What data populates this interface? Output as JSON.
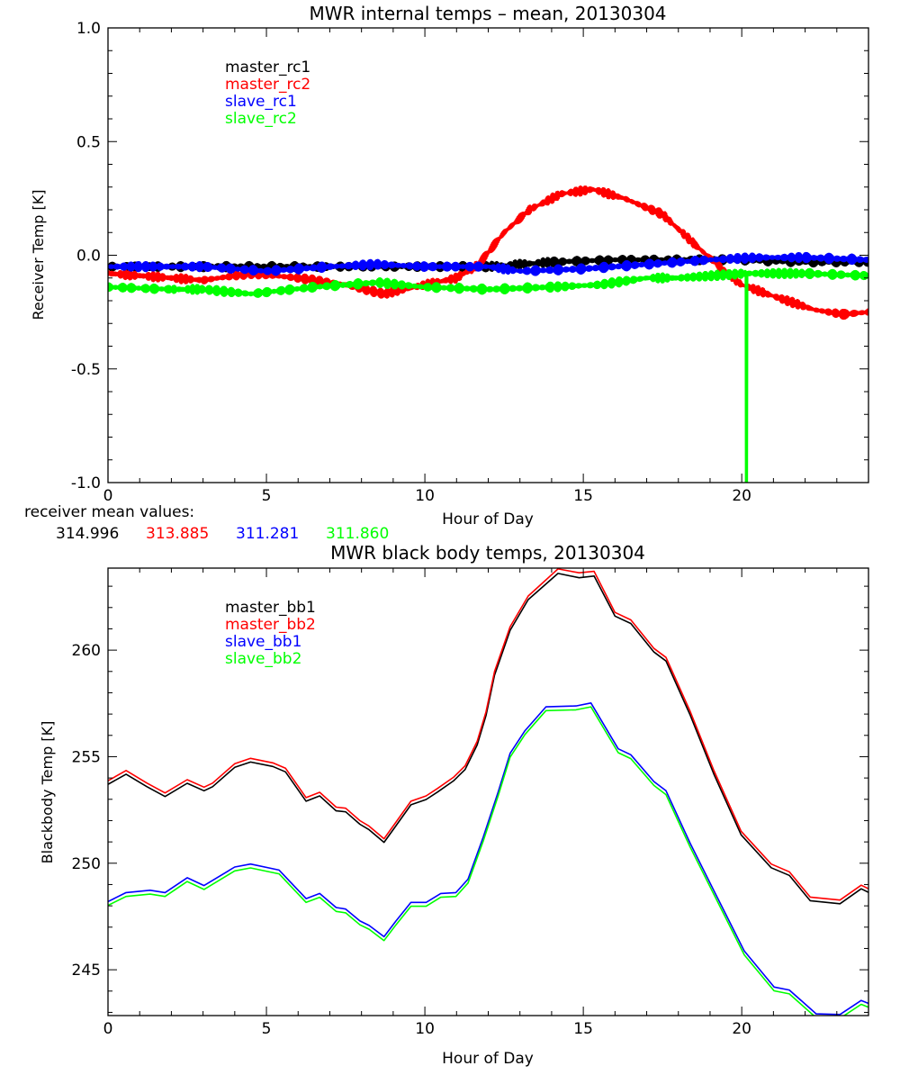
{
  "chart_data": [
    {
      "type": "line",
      "title": "MWR internal temps – mean, 20130304",
      "xlabel": "Hour of Day",
      "ylabel": "Receiver Temp [K]",
      "xlim": [
        0,
        24
      ],
      "ylim": [
        -1.0,
        1.0
      ],
      "xticks": [
        0,
        5,
        10,
        15,
        20
      ],
      "xtick_labels": [
        "0",
        "5",
        "10",
        "15",
        "20"
      ],
      "yticks": [
        -1.0,
        -0.5,
        0.0,
        0.5,
        1.0
      ],
      "ytick_labels": [
        "-1.0",
        "-0.5",
        "0.0",
        "0.5",
        "1.0"
      ],
      "grid": false,
      "legend_placement": "top-left",
      "series": [
        {
          "name": "master_rc1",
          "color": "#000000",
          "points": [
            [
              0,
              -0.05
            ],
            [
              2,
              -0.05
            ],
            [
              4,
              -0.05
            ],
            [
              6,
              -0.05
            ],
            [
              8,
              -0.05
            ],
            [
              10,
              -0.05
            ],
            [
              12,
              -0.05
            ],
            [
              13,
              -0.04
            ],
            [
              14,
              -0.03
            ],
            [
              16,
              -0.02
            ],
            [
              18,
              -0.02
            ],
            [
              20,
              -0.02
            ],
            [
              22,
              -0.03
            ],
            [
              24,
              -0.03
            ]
          ]
        },
        {
          "name": "master_rc2",
          "color": "#ff0000",
          "points": [
            [
              0,
              -0.08
            ],
            [
              1,
              -0.09
            ],
            [
              2,
              -0.1
            ],
            [
              3,
              -0.11
            ],
            [
              4.5,
              -0.08
            ],
            [
              6,
              -0.1
            ],
            [
              7.5,
              -0.13
            ],
            [
              8.7,
              -0.17
            ],
            [
              10,
              -0.13
            ],
            [
              11,
              -0.1
            ],
            [
              11.7,
              -0.04
            ],
            [
              12.5,
              0.1
            ],
            [
              13.3,
              0.2
            ],
            [
              14.3,
              0.27
            ],
            [
              15.3,
              0.29
            ],
            [
              16.3,
              0.25
            ],
            [
              17.5,
              0.18
            ],
            [
              18.5,
              0.05
            ],
            [
              19.3,
              -0.05
            ],
            [
              20,
              -0.13
            ],
            [
              21,
              -0.18
            ],
            [
              22.3,
              -0.24
            ],
            [
              23.2,
              -0.26
            ],
            [
              24,
              -0.25
            ]
          ]
        },
        {
          "name": "slave_rc1",
          "color": "#0000ff",
          "points": [
            [
              0,
              -0.05
            ],
            [
              3,
              -0.05
            ],
            [
              5,
              -0.07
            ],
            [
              7,
              -0.05
            ],
            [
              8.5,
              -0.04
            ],
            [
              10,
              -0.05
            ],
            [
              12,
              -0.05
            ],
            [
              13,
              -0.07
            ],
            [
              15,
              -0.06
            ],
            [
              17,
              -0.04
            ],
            [
              19,
              -0.02
            ],
            [
              20.5,
              -0.01
            ],
            [
              22,
              -0.01
            ],
            [
              24,
              -0.02
            ]
          ]
        },
        {
          "name": "slave_rc2",
          "color": "#00ff00",
          "points": [
            [
              0,
              -0.14
            ],
            [
              2,
              -0.15
            ],
            [
              3,
              -0.15
            ],
            [
              4.5,
              -0.17
            ],
            [
              6.5,
              -0.14
            ],
            [
              8.5,
              -0.12
            ],
            [
              10,
              -0.14
            ],
            [
              12,
              -0.15
            ],
            [
              14,
              -0.14
            ],
            [
              15.5,
              -0.13
            ],
            [
              17,
              -0.1
            ],
            [
              18,
              -0.1
            ],
            [
              20.14,
              -0.08
            ],
            [
              20.15,
              -1.0
            ],
            [
              20.16,
              -0.08
            ],
            [
              22,
              -0.08
            ],
            [
              24,
              -0.09
            ]
          ]
        }
      ],
      "annotation_label": "receiver mean values:",
      "mean_values": [
        {
          "value": "314.996",
          "color": "#000000"
        },
        {
          "value": "313.885",
          "color": "#ff0000"
        },
        {
          "value": "311.281",
          "color": "#0000ff"
        },
        {
          "value": "311.860",
          "color": "#00ff00"
        }
      ]
    },
    {
      "type": "line",
      "title": "MWR black body temps, 20130304",
      "xlabel": "Hour of Day",
      "ylabel": "Blackbody Temp [K]",
      "xlim": [
        0,
        24
      ],
      "ylim": [
        242.85,
        263.85
      ],
      "xticks": [
        0,
        5,
        10,
        15,
        20
      ],
      "xtick_labels": [
        "0",
        "5",
        "10",
        "15",
        "20"
      ],
      "yticks": [
        245,
        250,
        255,
        260
      ],
      "ytick_labels": [
        "245",
        "250",
        "255",
        "260"
      ],
      "grid": false,
      "legend_placement": "top-left",
      "series": [
        {
          "name": "master_bb1",
          "color": "#000000",
          "points": [
            [
              0,
              253.7
            ],
            [
              0.57,
              254.18
            ],
            [
              1.23,
              253.59
            ],
            [
              1.8,
              253.13
            ],
            [
              2.5,
              253.75
            ],
            [
              3.03,
              253.4
            ],
            [
              3.3,
              253.59
            ],
            [
              4.0,
              254.5
            ],
            [
              4.5,
              254.75
            ],
            [
              5.2,
              254.54
            ],
            [
              5.6,
              254.29
            ],
            [
              6.25,
              252.91
            ],
            [
              6.68,
              253.16
            ],
            [
              7.2,
              252.46
            ],
            [
              7.5,
              252.41
            ],
            [
              7.95,
              251.83
            ],
            [
              8.24,
              251.57
            ],
            [
              8.71,
              250.98
            ],
            [
              9.09,
              251.76
            ],
            [
              9.56,
              252.74
            ],
            [
              10.04,
              252.99
            ],
            [
              10.4,
              253.34
            ],
            [
              10.9,
              253.86
            ],
            [
              11.27,
              254.4
            ],
            [
              11.65,
              255.55
            ],
            [
              11.93,
              256.93
            ],
            [
              12.2,
              258.83
            ],
            [
              12.69,
              260.93
            ],
            [
              13.26,
              262.37
            ],
            [
              14.2,
              263.6
            ],
            [
              14.87,
              263.4
            ],
            [
              15.34,
              263.48
            ],
            [
              16.0,
              261.6
            ],
            [
              16.5,
              261.25
            ],
            [
              17.23,
              259.91
            ],
            [
              17.61,
              259.49
            ],
            [
              18.37,
              256.96
            ],
            [
              19.13,
              254.15
            ],
            [
              19.98,
              251.33
            ],
            [
              20.93,
              249.79
            ],
            [
              21.5,
              249.43
            ],
            [
              22.16,
              248.24
            ],
            [
              23.1,
              248.1
            ],
            [
              23.77,
              248.8
            ],
            [
              24,
              248.63
            ]
          ]
        },
        {
          "name": "master_bb2",
          "color": "#ff0000",
          "points": [
            [
              0,
              253.87
            ],
            [
              0.57,
              254.35
            ],
            [
              1.23,
              253.76
            ],
            [
              1.8,
              253.3
            ],
            [
              2.5,
              253.92
            ],
            [
              3.03,
              253.57
            ],
            [
              3.3,
              253.76
            ],
            [
              4.0,
              254.67
            ],
            [
              4.5,
              254.92
            ],
            [
              5.2,
              254.71
            ],
            [
              5.6,
              254.46
            ],
            [
              6.25,
              253.08
            ],
            [
              6.68,
              253.33
            ],
            [
              7.2,
              252.63
            ],
            [
              7.5,
              252.58
            ],
            [
              7.95,
              252.0
            ],
            [
              8.24,
              251.74
            ],
            [
              8.71,
              251.15
            ],
            [
              9.09,
              251.93
            ],
            [
              9.56,
              252.91
            ],
            [
              10.04,
              253.16
            ],
            [
              10.4,
              253.51
            ],
            [
              10.9,
              254.03
            ],
            [
              11.27,
              254.57
            ],
            [
              11.65,
              255.72
            ],
            [
              11.93,
              257.1
            ],
            [
              12.2,
              259.0
            ],
            [
              12.69,
              261.1
            ],
            [
              13.26,
              262.54
            ],
            [
              14.2,
              263.81
            ],
            [
              14.87,
              263.63
            ],
            [
              15.34,
              263.7
            ],
            [
              16.0,
              261.77
            ],
            [
              16.5,
              261.42
            ],
            [
              17.23,
              260.08
            ],
            [
              17.61,
              259.66
            ],
            [
              18.37,
              257.13
            ],
            [
              19.13,
              254.32
            ],
            [
              19.98,
              251.5
            ],
            [
              20.93,
              249.96
            ],
            [
              21.5,
              249.6
            ],
            [
              22.16,
              248.41
            ],
            [
              23.1,
              248.27
            ],
            [
              23.77,
              248.97
            ],
            [
              24,
              248.8
            ]
          ]
        },
        {
          "name": "slave_bb1",
          "color": "#0000ff",
          "points": [
            [
              0,
              248.2
            ],
            [
              0.57,
              248.62
            ],
            [
              1.33,
              248.73
            ],
            [
              1.8,
              248.62
            ],
            [
              2.5,
              249.32
            ],
            [
              3.03,
              248.95
            ],
            [
              4.0,
              249.82
            ],
            [
              4.5,
              249.96
            ],
            [
              5.4,
              249.68
            ],
            [
              6.25,
              248.34
            ],
            [
              6.68,
              248.58
            ],
            [
              7.2,
              247.92
            ],
            [
              7.5,
              247.85
            ],
            [
              7.95,
              247.29
            ],
            [
              8.24,
              247.08
            ],
            [
              8.71,
              246.55
            ],
            [
              9.09,
              247.29
            ],
            [
              9.56,
              248.16
            ],
            [
              10.04,
              248.16
            ],
            [
              10.5,
              248.58
            ],
            [
              10.98,
              248.62
            ],
            [
              11.36,
              249.25
            ],
            [
              11.84,
              251.22
            ],
            [
              12.31,
              253.33
            ],
            [
              12.69,
              255.16
            ],
            [
              13.16,
              256.22
            ],
            [
              13.82,
              257.34
            ],
            [
              14.77,
              257.38
            ],
            [
              15.24,
              257.52
            ],
            [
              16.1,
              255.37
            ],
            [
              16.5,
              255.09
            ],
            [
              17.23,
              253.83
            ],
            [
              17.61,
              253.4
            ],
            [
              18.37,
              250.94
            ],
            [
              19.13,
              248.69
            ],
            [
              20.08,
              245.88
            ],
            [
              21.02,
              244.19
            ],
            [
              21.5,
              244.05
            ],
            [
              22.35,
              242.93
            ],
            [
              23.1,
              242.9
            ],
            [
              23.77,
              243.56
            ],
            [
              24,
              243.42
            ]
          ]
        },
        {
          "name": "slave_bb2",
          "color": "#00ff00",
          "points": [
            [
              0,
              248.02
            ],
            [
              0.57,
              248.44
            ],
            [
              1.33,
              248.55
            ],
            [
              1.8,
              248.44
            ],
            [
              2.5,
              249.14
            ],
            [
              3.03,
              248.77
            ],
            [
              4.0,
              249.64
            ],
            [
              4.5,
              249.78
            ],
            [
              5.4,
              249.5
            ],
            [
              6.25,
              248.16
            ],
            [
              6.68,
              248.4
            ],
            [
              7.2,
              247.74
            ],
            [
              7.5,
              247.67
            ],
            [
              7.95,
              247.11
            ],
            [
              8.24,
              246.9
            ],
            [
              8.71,
              246.37
            ],
            [
              9.09,
              247.11
            ],
            [
              9.56,
              247.98
            ],
            [
              10.04,
              247.98
            ],
            [
              10.5,
              248.4
            ],
            [
              10.98,
              248.44
            ],
            [
              11.36,
              249.07
            ],
            [
              11.84,
              251.04
            ],
            [
              12.31,
              253.15
            ],
            [
              12.69,
              254.98
            ],
            [
              13.16,
              256.04
            ],
            [
              13.82,
              257.16
            ],
            [
              14.77,
              257.2
            ],
            [
              15.24,
              257.34
            ],
            [
              16.1,
              255.19
            ],
            [
              16.5,
              254.91
            ],
            [
              17.23,
              253.65
            ],
            [
              17.61,
              253.22
            ],
            [
              18.37,
              250.76
            ],
            [
              19.13,
              248.51
            ],
            [
              20.08,
              245.7
            ],
            [
              21.02,
              244.01
            ],
            [
              21.5,
              243.87
            ],
            [
              22.35,
              242.75
            ],
            [
              23.1,
              242.72
            ],
            [
              23.77,
              243.38
            ],
            [
              24,
              243.24
            ]
          ]
        }
      ]
    }
  ]
}
